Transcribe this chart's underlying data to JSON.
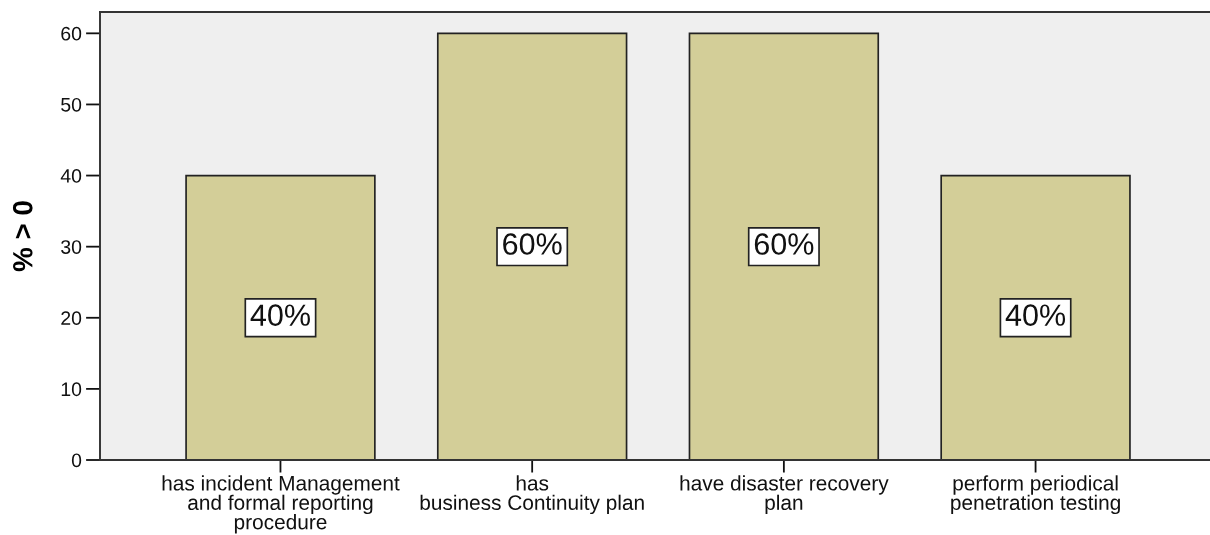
{
  "chart_data": {
    "type": "bar",
    "ylabel": "% > 0",
    "categories": [
      "has incident Management\nand formal reporting\nprocedure",
      "has\nbusiness Continuity plan",
      "have disaster recovery\nplan",
      "perform periodical\npenetration testing"
    ],
    "values": [
      40,
      60,
      60,
      40
    ],
    "color": "#d3ce98",
    "value_labels": [
      "40%",
      "60%",
      "60%",
      "40%"
    ],
    "ylim": [
      0,
      63
    ],
    "yticks": [
      0,
      10,
      20,
      30,
      40,
      50,
      60
    ]
  }
}
